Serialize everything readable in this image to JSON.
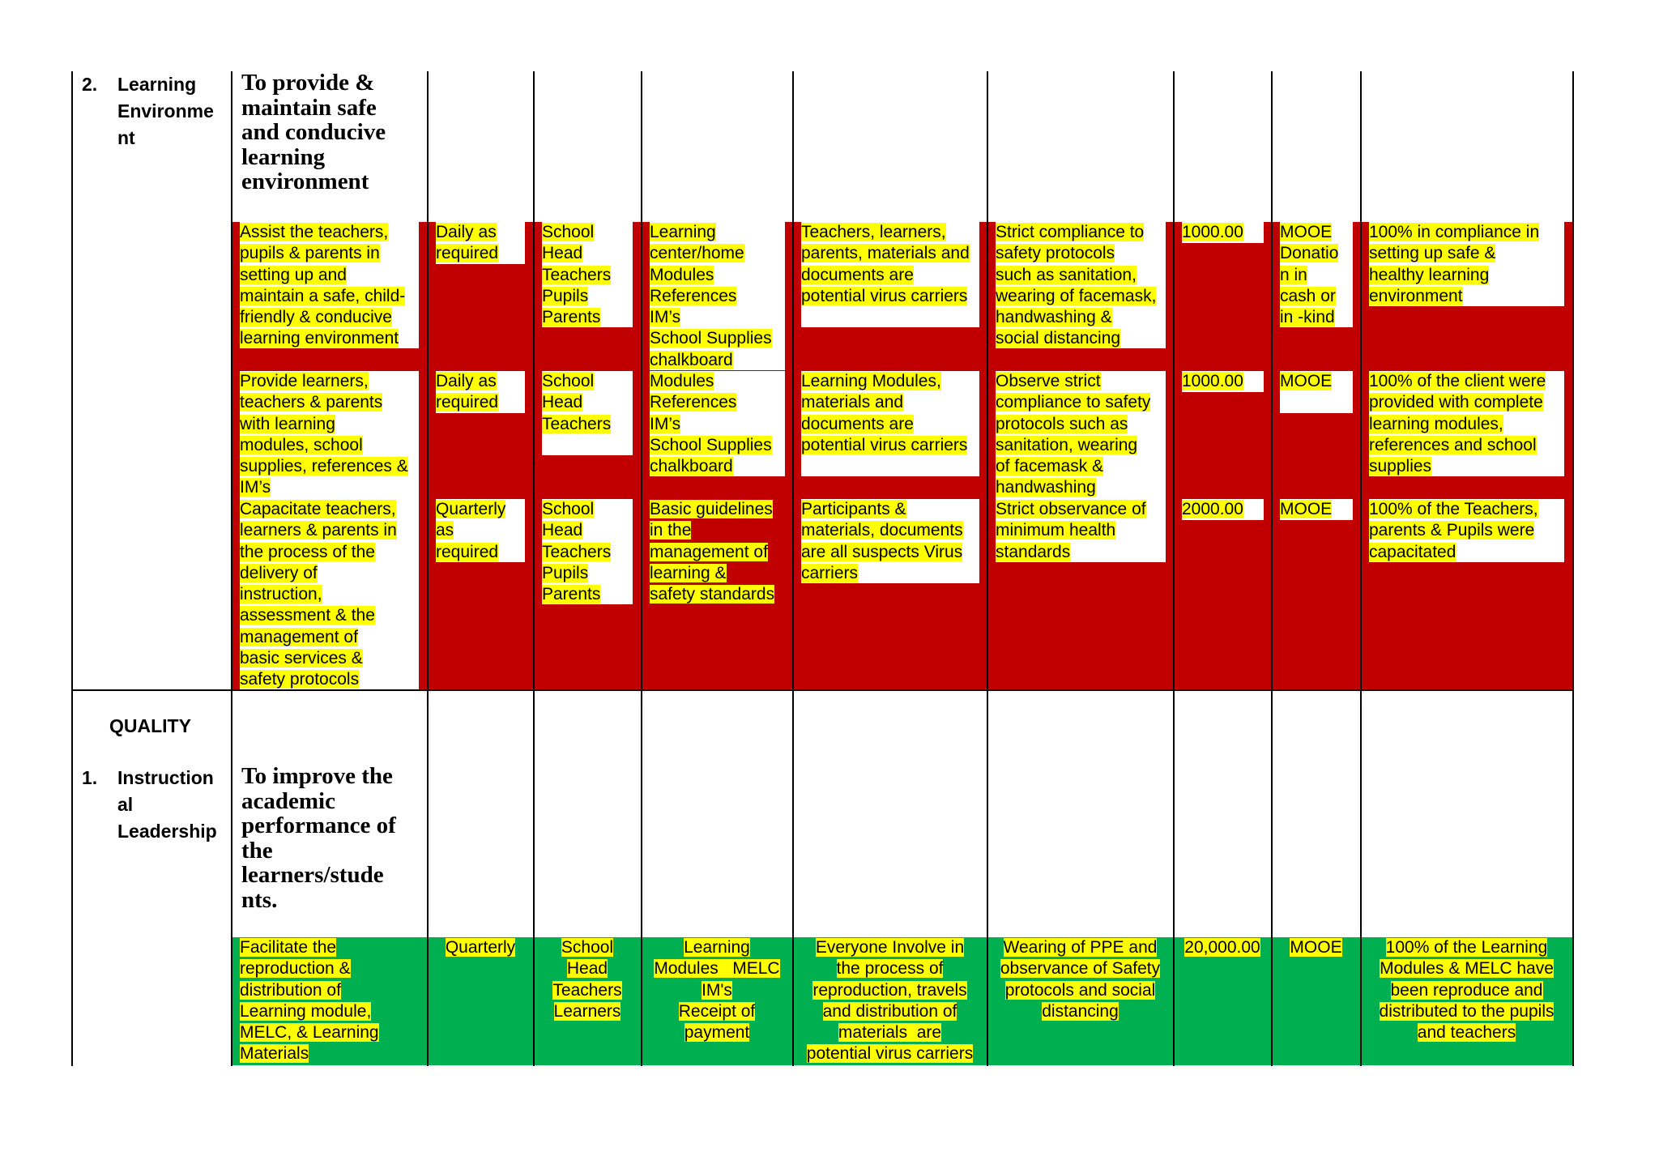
{
  "colors": {
    "row_band_red": "#c00000",
    "row_band_green": "#00b050",
    "text_highlight": "#ffff00"
  },
  "learning_environment": {
    "number": "2.",
    "label_lines": [
      "Learning",
      "Environme",
      "nt"
    ],
    "objective_lines": [
      "To provide &",
      "maintain safe",
      "and conducive",
      "learning",
      "environment"
    ],
    "rows": [
      {
        "activity": [
          "Assist the teachers,",
          "pupils & parents in",
          "setting up and",
          "maintain a safe, child-",
          "friendly & conducive",
          "learning environment"
        ],
        "timeframe": [
          "Daily as",
          "required"
        ],
        "persons": [
          "School",
          "Head",
          "Teachers",
          "Pupils",
          "Parents"
        ],
        "resources": [
          "Learning",
          "center/home",
          "Modules",
          "References",
          "IM’s",
          "School Supplies",
          "chalkboard"
        ],
        "risks": [
          "Teachers, learners,",
          "parents, materials and",
          "documents are",
          "potential virus carriers"
        ],
        "measures": [
          "Strict compliance to",
          "safety protocols",
          "such as sanitation,",
          "wearing of facemask,",
          "handwashing &",
          "social distancing"
        ],
        "budget": [
          "1000.00"
        ],
        "source": [
          "MOOE",
          "Donatio",
          "n in",
          "cash or",
          "in -kind"
        ],
        "success": [
          "100% in compliance in",
          "setting up safe &",
          "healthy learning",
          "environment"
        ]
      },
      {
        "activity": [
          "Provide learners,",
          "teachers & parents",
          "with learning",
          "modules, school",
          "supplies, references &",
          "IM’s"
        ],
        "timeframe": [
          "Daily as",
          "required"
        ],
        "persons": [
          "School",
          "Head",
          "Teachers"
        ],
        "resources": [
          "Modules",
          "References",
          "IM’s",
          "School Supplies",
          "chalkboard"
        ],
        "risks": [
          "Learning Modules,",
          "materials and",
          "documents are",
          "potential virus carriers"
        ],
        "measures": [
          "Observe strict",
          "compliance to safety",
          "protocols such as",
          "sanitation, wearing",
          "of facemask &",
          "handwashing"
        ],
        "budget": [
          "1000.00"
        ],
        "source": [
          "MOOE"
        ],
        "success": [
          "100% of the client were",
          "provided with complete",
          "learning modules,",
          "references and school",
          "supplies"
        ]
      },
      {
        "activity": [
          "Capacitate teachers,",
          "learners & parents in",
          "the process of the",
          "delivery of",
          "instruction,",
          "assessment & the",
          "management of",
          "basic services &",
          "safety protocols"
        ],
        "timeframe": [
          "Quarterly",
          "as",
          "required"
        ],
        "persons": [
          "School",
          "Head",
          "Teachers",
          "Pupils",
          "Parents"
        ],
        "resources": [
          "Basic guidelines",
          "in the",
          "management of",
          "learning &",
          "safety standards"
        ],
        "risks": [
          "Participants &",
          "materials, documents",
          "are all suspects Virus",
          "carriers"
        ],
        "measures": [
          "Strict observance of",
          "minimum health",
          "standards"
        ],
        "budget": [
          "2000.00"
        ],
        "source": [
          "MOOE"
        ],
        "success": [
          "100% of the Teachers,",
          "parents & Pupils were",
          "capacitated"
        ]
      }
    ]
  },
  "quality": {
    "heading": "QUALITY",
    "number": "1.",
    "label_lines": [
      "Instruction",
      "al",
      "Leadership"
    ],
    "objective_lines": [
      "To improve the",
      "academic",
      "performance of",
      "the",
      "learners/stude",
      "nts."
    ],
    "row": {
      "activity": [
        "Facilitate the",
        "reproduction &",
        "distribution of",
        "Learning module,",
        "MELC, & Learning",
        "Materials"
      ],
      "timeframe": [
        "Quarterly"
      ],
      "persons": [
        "School",
        "Head",
        "Teachers",
        "Learners"
      ],
      "resources": [
        "Learning",
        "Modules   MELC",
        "IM's",
        "Receipt of",
        "payment"
      ],
      "risks": [
        "Everyone Involve in",
        "the process of",
        "reproduction, travels",
        "and distribution of",
        "materials  are",
        "potential virus carriers"
      ],
      "measures": [
        "Wearing of PPE and",
        "observance of Safety",
        "protocols and social",
        "distancing"
      ],
      "budget": [
        "20,000.00"
      ],
      "source": [
        "MOOE"
      ],
      "success": [
        "100% of the Learning",
        "Modules & MELC have",
        "been reproduce and",
        "distributed to the pupils",
        "and teachers"
      ]
    }
  }
}
